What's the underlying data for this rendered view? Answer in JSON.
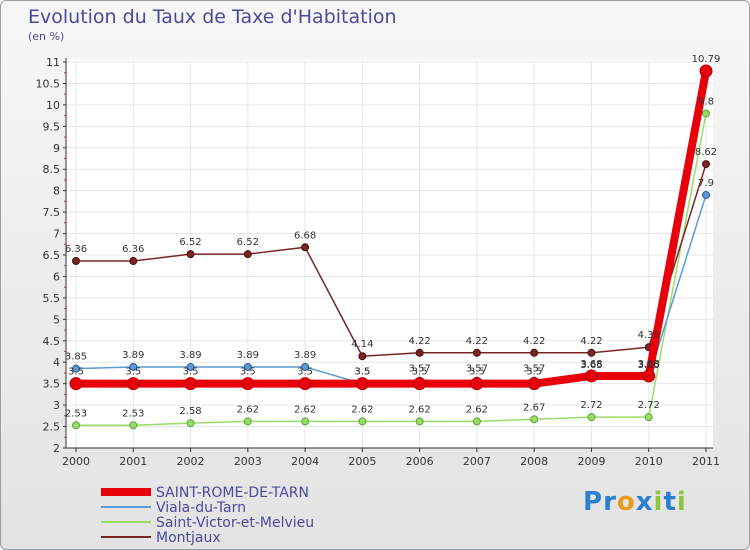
{
  "chart_data": {
    "type": "line",
    "title": "Evolution du Taux de Taxe d'Habitation",
    "subtitle": "(en %)",
    "ylim": [
      2,
      11
    ],
    "yticks": [
      "2",
      "2.5",
      "3",
      "3.5",
      "4",
      "4.5",
      "5",
      "5.5",
      "6",
      "6.5",
      "7",
      "7.5",
      "8",
      "8.5",
      "9",
      "9.5",
      "10",
      "10.5",
      "11"
    ],
    "x": [
      "2000",
      "2001",
      "2002",
      "2003",
      "2004",
      "2005",
      "2006",
      "2007",
      "2008",
      "2009",
      "2010",
      "2011"
    ],
    "series": [
      {
        "name": "SAINT-ROME-DE-TARN",
        "color": "#e8000b",
        "values": [
          3.5,
          3.5,
          3.5,
          3.5,
          3.5,
          3.5,
          3.5,
          3.5,
          3.5,
          3.68,
          3.68,
          10.79
        ],
        "labels": [
          "3.5",
          "3.5",
          "3.5",
          "3.5",
          "3.5",
          "3.5",
          "3.5",
          "3.5",
          "3.5",
          "3.68",
          "3.68",
          "10.79"
        ]
      },
      {
        "name": "Viala-du-Tarn",
        "color": "#5b9bd5",
        "values": [
          3.85,
          3.89,
          3.89,
          3.89,
          3.89,
          3.5,
          3.57,
          3.57,
          3.57,
          3.65,
          3.65,
          7.9
        ],
        "labels": [
          "3.85",
          "3.89",
          "3.89",
          "3.89",
          "3.89",
          "3.5",
          "3.57",
          "3.57",
          "3.57",
          "3.65",
          "3.65",
          "7.9"
        ]
      },
      {
        "name": "Saint-Victor-et-Melvieu",
        "color": "#99dd66",
        "values": [
          2.53,
          2.53,
          2.58,
          2.62,
          2.62,
          2.62,
          2.62,
          2.62,
          2.67,
          2.72,
          2.72,
          9.8
        ],
        "labels": [
          "2.53",
          "2.53",
          "2.58",
          "2.62",
          "2.62",
          "2.62",
          "2.62",
          "2.62",
          "2.67",
          "2.72",
          "2.72",
          "9.8"
        ]
      },
      {
        "name": "Montjaux",
        "color": "#7a2525",
        "values": [
          6.36,
          6.36,
          6.52,
          6.52,
          6.68,
          4.14,
          4.22,
          4.22,
          4.22,
          4.22,
          4.35,
          8.62
        ],
        "labels": [
          "6.36",
          "6.36",
          "6.52",
          "6.52",
          "6.68",
          "4.14",
          "4.22",
          "4.22",
          "4.22",
          "4.22",
          "4.35",
          "8.62"
        ]
      }
    ]
  },
  "logo": {
    "letters": [
      "P",
      "r",
      "o",
      "x",
      "i",
      "t",
      "i"
    ],
    "colors": [
      "#2b7fd0",
      "#2b7fd0",
      "#e89b1c",
      "#2b7fd0",
      "#8cc63f",
      "#2b7fd0",
      "#8cc63f"
    ]
  }
}
